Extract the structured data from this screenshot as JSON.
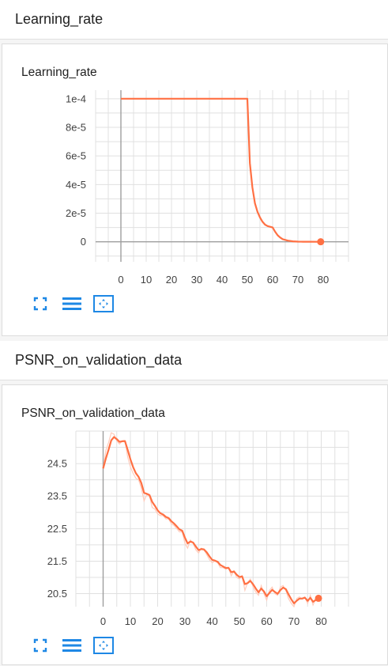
{
  "sections": [
    {
      "header": "Learning_rate"
    },
    {
      "header": "PSNR_on_validation_data"
    }
  ],
  "colors": {
    "series": "#ff7043",
    "series_raw": "#ffccbc",
    "grid": "#e0e0e0",
    "axis": "#9e9e9e",
    "tool": "#1e88e5"
  },
  "toolbar": {
    "icons": [
      "fullscreen-icon",
      "toggle-lines-icon",
      "fit-domain-icon"
    ]
  },
  "chart_data": [
    {
      "type": "line",
      "title": "Learning_rate",
      "xlabel": "",
      "ylabel": "",
      "xlim": [
        -10,
        90
      ],
      "ylim": [
        -1.4e-05,
        0.000106
      ],
      "x_ticks": [
        0,
        10,
        20,
        30,
        40,
        50,
        60,
        70,
        80
      ],
      "x_tick_labels": [
        "0",
        "10",
        "20",
        "30",
        "40",
        "50",
        "60",
        "70",
        "80"
      ],
      "y_ticks": [
        0,
        2e-05,
        4e-05,
        6e-05,
        8e-05,
        0.0001
      ],
      "y_tick_labels": [
        "0",
        "2e-5",
        "4e-5",
        "6e-5",
        "8e-5",
        "1e-4"
      ],
      "grid": true,
      "series": [
        {
          "x": [
            0,
            10,
            20,
            30,
            40,
            49,
            50,
            51,
            52,
            53,
            54,
            55,
            56,
            57,
            58,
            59,
            60,
            61,
            62,
            63,
            64,
            66,
            68,
            70,
            72,
            75,
            79
          ],
          "y": [
            0.0001,
            0.0001,
            0.0001,
            0.0001,
            0.0001,
            0.0001,
            0.0001,
            5.5e-05,
            3.8e-05,
            2.7e-05,
            2.1e-05,
            1.7e-05,
            1.4e-05,
            1.2e-05,
            1.1e-05,
            1.05e-05,
            1e-05,
            7e-06,
            4.5e-06,
            3e-06,
            1.8e-06,
            8e-07,
            3e-07,
            1e-07,
            5e-08,
            2e-08,
            1e-08
          ]
        }
      ]
    },
    {
      "type": "line",
      "title": "PSNR_on_validation_data",
      "xlabel": "",
      "ylabel": "",
      "xlim": [
        -10,
        90
      ],
      "ylim": [
        20.1,
        25.5
      ],
      "x_ticks": [
        0,
        10,
        20,
        30,
        40,
        50,
        60,
        70,
        80
      ],
      "x_tick_labels": [
        "0",
        "10",
        "20",
        "30",
        "40",
        "50",
        "60",
        "70",
        "80"
      ],
      "y_ticks": [
        20.5,
        21.5,
        22.5,
        23.5,
        24.5
      ],
      "y_tick_labels": [
        "20.5",
        "21.5",
        "22.5",
        "23.5",
        "24.5"
      ],
      "grid": true,
      "series": [
        {
          "x": [
            0,
            1,
            2,
            3,
            4,
            5,
            6,
            7,
            8,
            9,
            10,
            11,
            12,
            13,
            14,
            15,
            16,
            17,
            18,
            19,
            20,
            21,
            22,
            23,
            24,
            25,
            26,
            27,
            28,
            29,
            30,
            31,
            32,
            33,
            34,
            35,
            36,
            37,
            38,
            39,
            40,
            41,
            42,
            43,
            44,
            45,
            46,
            47,
            48,
            49,
            50,
            51,
            52,
            53,
            54,
            55,
            56,
            57,
            58,
            59,
            60,
            61,
            62,
            63,
            64,
            65,
            66,
            67,
            68,
            69,
            70,
            71,
            72,
            73,
            74,
            75,
            76,
            77,
            78,
            79
          ],
          "y": [
            24.35,
            24.9,
            25.15,
            25.45,
            25.4,
            25.2,
            25.1,
            25.2,
            25.2,
            24.7,
            24.4,
            24.2,
            24.05,
            24.0,
            23.75,
            23.35,
            23.55,
            23.5,
            23.15,
            23.1,
            22.95,
            22.9,
            22.9,
            22.8,
            22.8,
            22.65,
            22.6,
            22.5,
            22.4,
            22.4,
            22.05,
            21.9,
            22.15,
            22.05,
            21.85,
            21.75,
            21.9,
            21.85,
            21.7,
            21.55,
            21.45,
            21.5,
            21.45,
            21.3,
            21.3,
            21.25,
            21.3,
            21.05,
            21.2,
            21.0,
            20.95,
            21.05,
            20.6,
            20.85,
            20.95,
            20.7,
            20.55,
            20.45,
            20.75,
            20.5,
            20.3,
            20.6,
            20.7,
            20.5,
            20.45,
            20.7,
            20.75,
            20.6,
            20.35,
            20.2,
            20.1,
            20.35,
            20.4,
            20.35,
            20.4,
            20.2,
            20.45,
            20.15,
            20.35,
            20.4
          ]
        }
      ]
    }
  ]
}
